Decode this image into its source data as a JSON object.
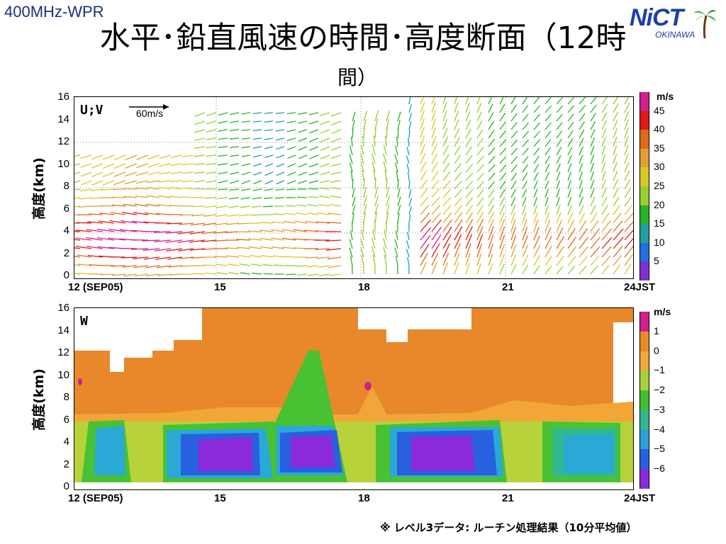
{
  "header": {
    "tag": "400MHz-WPR",
    "title_line1": "水平･鉛直風速の時間･高度断面（12時",
    "title_line2": "間）",
    "logo_text": "NiCT",
    "logo_sub": "OKINAWA"
  },
  "panel_uv": {
    "label": "U;V",
    "ref_vector_label": "60m/s",
    "ylabel": "高度(km)",
    "yticks": [
      "16",
      "14",
      "12",
      "10",
      "8",
      "6",
      "4",
      "2",
      "0"
    ],
    "xticks": [
      "12 (SEP05)",
      "15",
      "18",
      "21",
      "24JST"
    ],
    "colorbar_unit": "m/s",
    "colorbar_labels": [
      "45",
      "40",
      "35",
      "30",
      "25",
      "20",
      "15",
      "10",
      "5"
    ],
    "colorbar_colors": [
      "#d0208a",
      "#e01818",
      "#e06a18",
      "#e0a030",
      "#d8c828",
      "#9acd32",
      "#28b428",
      "#20a0a0",
      "#2070e0",
      "#8030d0"
    ]
  },
  "panel_w": {
    "label": "W",
    "ylabel": "高度(km)",
    "yticks": [
      "16",
      "14",
      "12",
      "10",
      "8",
      "6",
      "4",
      "2",
      "0"
    ],
    "xticks": [
      "12 (SEP05)",
      "15",
      "18",
      "21",
      "24JST"
    ],
    "colorbar_unit": "m/s",
    "colorbar_labels": [
      "1",
      "0",
      "−1",
      "−2",
      "−3",
      "−4",
      "−5",
      "−6"
    ],
    "colorbar_colors": [
      "#d0208a",
      "#e88a28",
      "#f0a838",
      "#a8d038",
      "#40c030",
      "#30b890",
      "#2aa0d8",
      "#2860e0",
      "#8a2ad8"
    ]
  },
  "footnote": "※ レベル3データ: ルーチン処理結果（10分平均値）"
}
